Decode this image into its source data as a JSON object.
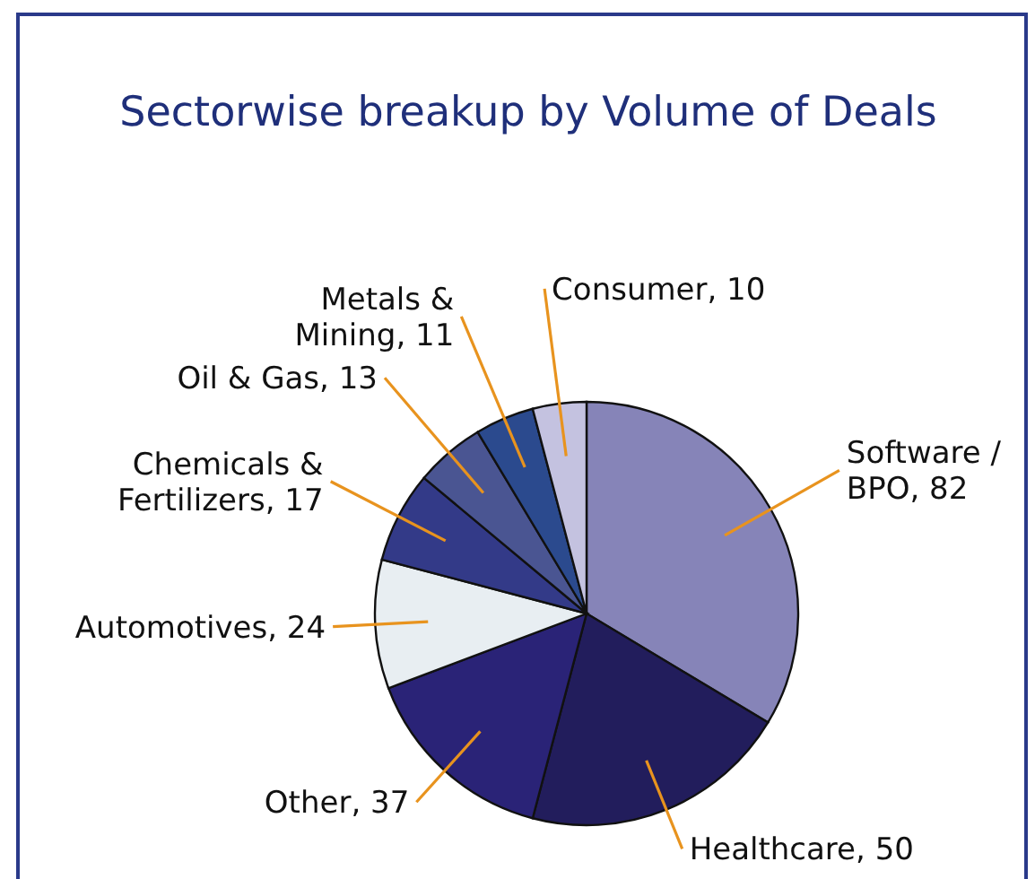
{
  "chart_data": {
    "type": "pie",
    "title": "Sectorwise breakup by Volume of Deals",
    "categories": [
      "Software / BPO",
      "Healthcare",
      "Other",
      "Automotives",
      "Chemicals & Fertilizers",
      "Oil & Gas",
      "Metals & Mining",
      "Consumer"
    ],
    "values": [
      82,
      50,
      37,
      24,
      17,
      13,
      11,
      10
    ],
    "colors": [
      "#8684b8",
      "#221d5c",
      "#2a2377",
      "#e8eef2",
      "#333a88",
      "#4a5592",
      "#2b4a8e",
      "#c4c2e0"
    ],
    "value_labels": [
      ", 82",
      ", 50",
      ", 37",
      ", 24",
      ", 17",
      ", 13",
      ", 11",
      ", 10"
    ]
  }
}
